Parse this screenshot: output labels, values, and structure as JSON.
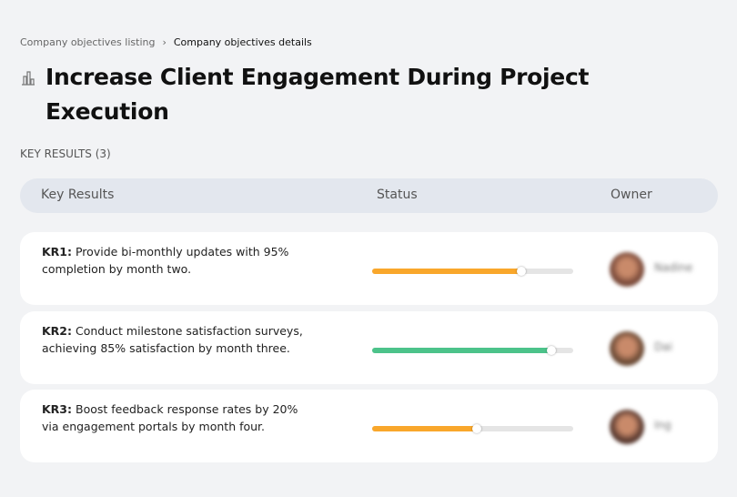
{
  "breadcrumb": {
    "parent": "Company objectives listing",
    "separator": "›",
    "current": "Company objectives details"
  },
  "title": "Increase Client Engagement During Project Execution",
  "section_label": "KEY RESULTS (3)",
  "table": {
    "headers": [
      "Key Results",
      "Status",
      "Owner"
    ]
  },
  "key_results": [
    {
      "id": "KR1:",
      "text": " Provide bi-monthly updates with 95% completion by month two.",
      "progress": 74,
      "color": "#f9a72b",
      "owner": "Nadine"
    },
    {
      "id": "KR2:",
      "text": " Conduct milestone satisfaction surveys, achieving 85% satisfaction by month three.",
      "progress": 89,
      "color": "#4cc38a",
      "owner": "Dai"
    },
    {
      "id": "KR3:",
      "text": " Boost feedback response rates by 20% via engagement portals by month four.",
      "progress": 52,
      "color": "#f9a72b",
      "owner": "Ing"
    }
  ]
}
